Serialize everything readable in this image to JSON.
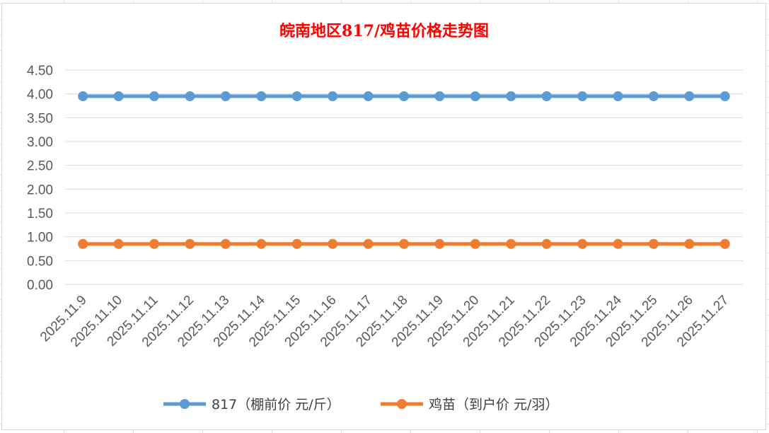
{
  "chart_data": {
    "type": "line",
    "title": "皖南地区817/鸡苗价格走势图",
    "categories": [
      "2025.11.9",
      "2025.11.10",
      "2025.11.11",
      "2025.11.12",
      "2025.11.13",
      "2025.11.14",
      "2025.11.15",
      "2025.11.16",
      "2025.11.17",
      "2025.11.18",
      "2025.11.19",
      "2025.11.20",
      "2025.11.21",
      "2025.11.22",
      "2025.11.23",
      "2025.11.24",
      "2025.11.25",
      "2025.11.26",
      "2025.11.27"
    ],
    "ylim": [
      0,
      4.5
    ],
    "yticks": [
      "0.00",
      "0.50",
      "1.00",
      "1.50",
      "2.00",
      "2.50",
      "3.00",
      "3.50",
      "4.00",
      "4.50"
    ],
    "grid": true,
    "legend_position": "bottom",
    "series": [
      {
        "name": "817（棚前价 元/斤）",
        "color": "#5b9bd5",
        "values": [
          3.95,
          3.95,
          3.95,
          3.95,
          3.95,
          3.95,
          3.95,
          3.95,
          3.95,
          3.95,
          3.95,
          3.95,
          3.95,
          3.95,
          3.95,
          3.95,
          3.95,
          3.95,
          3.95
        ]
      },
      {
        "name": "鸡苗（到户价 元/羽）",
        "color": "#ed7d31",
        "values": [
          0.85,
          0.85,
          0.85,
          0.85,
          0.85,
          0.85,
          0.85,
          0.85,
          0.85,
          0.85,
          0.85,
          0.85,
          0.85,
          0.85,
          0.85,
          0.85,
          0.85,
          0.85,
          0.85
        ]
      }
    ]
  }
}
